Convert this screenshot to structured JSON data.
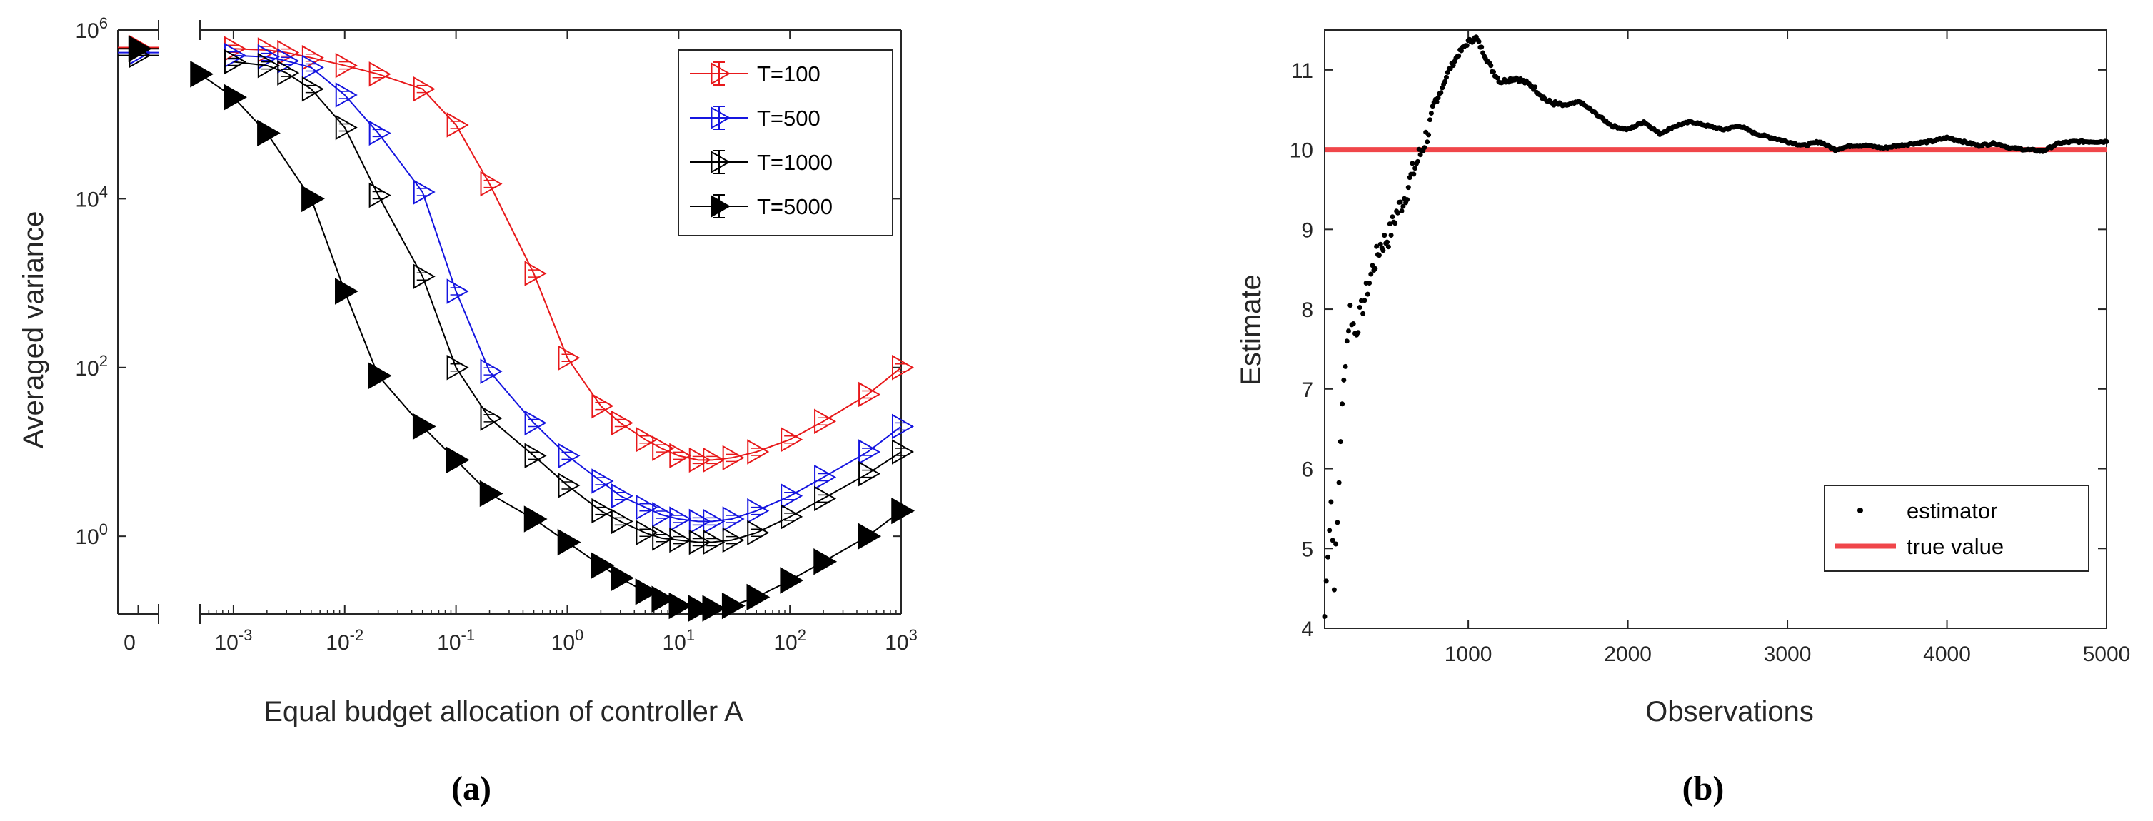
{
  "chart_data": [
    {
      "panel": "(a)",
      "type": "line",
      "title": "",
      "xlabel": "Equal budget allocation of controller A",
      "ylabel": "Averaged variance",
      "xscale": "log",
      "yscale": "log",
      "xlim": [
        0.0005,
        1000
      ],
      "ylim": [
        0.12,
        1000000
      ],
      "xtick_values": [
        0.001,
        0.01,
        0.1,
        1,
        10,
        100,
        1000
      ],
      "xtick_labels": [
        {
          "base": "10",
          "exp": "-3"
        },
        {
          "base": "10",
          "exp": "-2"
        },
        {
          "base": "10",
          "exp": "-1"
        },
        {
          "base": "10",
          "exp": "0"
        },
        {
          "base": "10",
          "exp": "1"
        },
        {
          "base": "10",
          "exp": "2"
        },
        {
          "base": "10",
          "exp": "3"
        }
      ],
      "ytick_values": [
        1,
        100,
        10000,
        1000000
      ],
      "ytick_labels": [
        {
          "base": "10",
          "exp": "0"
        },
        {
          "base": "10",
          "exp": "2"
        },
        {
          "base": "10",
          "exp": "4"
        },
        {
          "base": "10",
          "exp": "6"
        }
      ],
      "zero_tick_label": "0",
      "legend_position": "top-right",
      "series": [
        {
          "name": "T=100",
          "color": "#e8191b",
          "marker": "open-right-triangle",
          "x": [
            0.001,
            0.002,
            0.003,
            0.005,
            0.01,
            0.02,
            0.05,
            0.1,
            0.2,
            0.5,
            1,
            2,
            3,
            5,
            7,
            10,
            15,
            20,
            30,
            50,
            100,
            200,
            500,
            1000
          ],
          "y": [
            600000,
            580000,
            540000,
            470000,
            380000,
            300000,
            200000,
            75000,
            15000,
            1300,
            130,
            35,
            22,
            14,
            11,
            9,
            8,
            8,
            8.5,
            10,
            14,
            23,
            48,
            100
          ],
          "zero_value": 620000
        },
        {
          "name": "T=500",
          "color": "#1515e0",
          "marker": "open-right-triangle",
          "x": [
            0.001,
            0.002,
            0.003,
            0.005,
            0.01,
            0.02,
            0.05,
            0.1,
            0.2,
            0.5,
            1,
            2,
            3,
            5,
            7,
            10,
            15,
            20,
            30,
            50,
            100,
            200,
            500,
            1000
          ],
          "y": [
            500000,
            480000,
            430000,
            360000,
            170000,
            60000,
            12000,
            800,
            90,
            22,
            9,
            4.5,
            3,
            2.2,
            1.8,
            1.6,
            1.5,
            1.5,
            1.6,
            2,
            3,
            5,
            10,
            20
          ],
          "zero_value": 540000
        },
        {
          "name": "T=1000",
          "color": "#000000",
          "marker": "open-right-triangle",
          "x": [
            0.001,
            0.002,
            0.003,
            0.005,
            0.01,
            0.02,
            0.05,
            0.1,
            0.2,
            0.5,
            1,
            2,
            3,
            5,
            7,
            10,
            15,
            20,
            30,
            50,
            100,
            200,
            500,
            1000
          ],
          "y": [
            420000,
            380000,
            310000,
            200000,
            70000,
            11000,
            1200,
            100,
            25,
            9,
            4,
            2,
            1.5,
            1.1,
            0.95,
            0.9,
            0.85,
            0.85,
            0.9,
            1.1,
            1.7,
            2.8,
            5.5,
            10
          ],
          "zero_value": 500000
        },
        {
          "name": "T=5000",
          "color": "#000000",
          "marker": "filled-right-triangle",
          "x": [
            0.0005,
            0.001,
            0.002,
            0.005,
            0.01,
            0.02,
            0.05,
            0.1,
            0.2,
            0.5,
            1,
            2,
            3,
            5,
            7,
            10,
            15,
            20,
            30,
            50,
            100,
            200,
            500,
            1000
          ],
          "y": [
            300000,
            160000,
            60000,
            10000,
            800,
            80,
            20,
            8,
            3.2,
            1.6,
            0.85,
            0.45,
            0.32,
            0.22,
            0.18,
            0.15,
            0.14,
            0.14,
            0.15,
            0.19,
            0.3,
            0.5,
            1,
            2
          ],
          "zero_value": 600000
        }
      ]
    },
    {
      "panel": "(b)",
      "type": "scatter",
      "title": "",
      "xlabel": "Observations",
      "ylabel": "Estimate",
      "xlim": [
        100,
        5000
      ],
      "ylim": [
        4,
        11.5
      ],
      "xticks": [
        1000,
        2000,
        3000,
        4000,
        5000
      ],
      "yticks": [
        4,
        5,
        6,
        7,
        8,
        9,
        10,
        11
      ],
      "true_value": 10,
      "legend_position": "bottom-right",
      "legend": [
        "estimator",
        "true value"
      ],
      "estimator_color": "#000000",
      "true_value_color": "#f0464a",
      "trajectory_points": [
        [
          100,
          4.15
        ],
        [
          120,
          5.0
        ],
        [
          140,
          5.6
        ],
        [
          160,
          4.6
        ],
        [
          180,
          5.3
        ],
        [
          200,
          6.4
        ],
        [
          230,
          7.4
        ],
        [
          260,
          8.0
        ],
        [
          290,
          7.7
        ],
        [
          320,
          7.9
        ],
        [
          360,
          8.2
        ],
        [
          400,
          8.5
        ],
        [
          450,
          8.8
        ],
        [
          500,
          8.9
        ],
        [
          550,
          9.2
        ],
        [
          600,
          9.4
        ],
        [
          650,
          9.7
        ],
        [
          700,
          9.95
        ],
        [
          760,
          10.3
        ],
        [
          820,
          10.7
        ],
        [
          880,
          11.0
        ],
        [
          940,
          11.2
        ],
        [
          1000,
          11.35
        ],
        [
          1050,
          11.4
        ],
        [
          1100,
          11.2
        ],
        [
          1150,
          11.0
        ],
        [
          1200,
          10.85
        ],
        [
          1300,
          10.9
        ],
        [
          1400,
          10.8
        ],
        [
          1500,
          10.6
        ],
        [
          1600,
          10.55
        ],
        [
          1700,
          10.6
        ],
        [
          1800,
          10.45
        ],
        [
          1900,
          10.3
        ],
        [
          2000,
          10.25
        ],
        [
          2100,
          10.35
        ],
        [
          2200,
          10.2
        ],
        [
          2300,
          10.3
        ],
        [
          2400,
          10.35
        ],
        [
          2500,
          10.3
        ],
        [
          2600,
          10.25
        ],
        [
          2700,
          10.3
        ],
        [
          2800,
          10.2
        ],
        [
          2900,
          10.15
        ],
        [
          3000,
          10.1
        ],
        [
          3100,
          10.05
        ],
        [
          3200,
          10.1
        ],
        [
          3300,
          10.0
        ],
        [
          3400,
          10.05
        ],
        [
          3500,
          10.05
        ],
        [
          3600,
          10.02
        ],
        [
          3700,
          10.05
        ],
        [
          3800,
          10.08
        ],
        [
          3900,
          10.1
        ],
        [
          4000,
          10.15
        ],
        [
          4100,
          10.1
        ],
        [
          4200,
          10.05
        ],
        [
          4300,
          10.08
        ],
        [
          4400,
          10.02
        ],
        [
          4500,
          10.0
        ],
        [
          4600,
          9.98
        ],
        [
          4700,
          10.08
        ],
        [
          4800,
          10.1
        ],
        [
          4900,
          10.1
        ],
        [
          5000,
          10.1
        ]
      ]
    }
  ],
  "captions": [
    "(a)",
    "(b)"
  ]
}
